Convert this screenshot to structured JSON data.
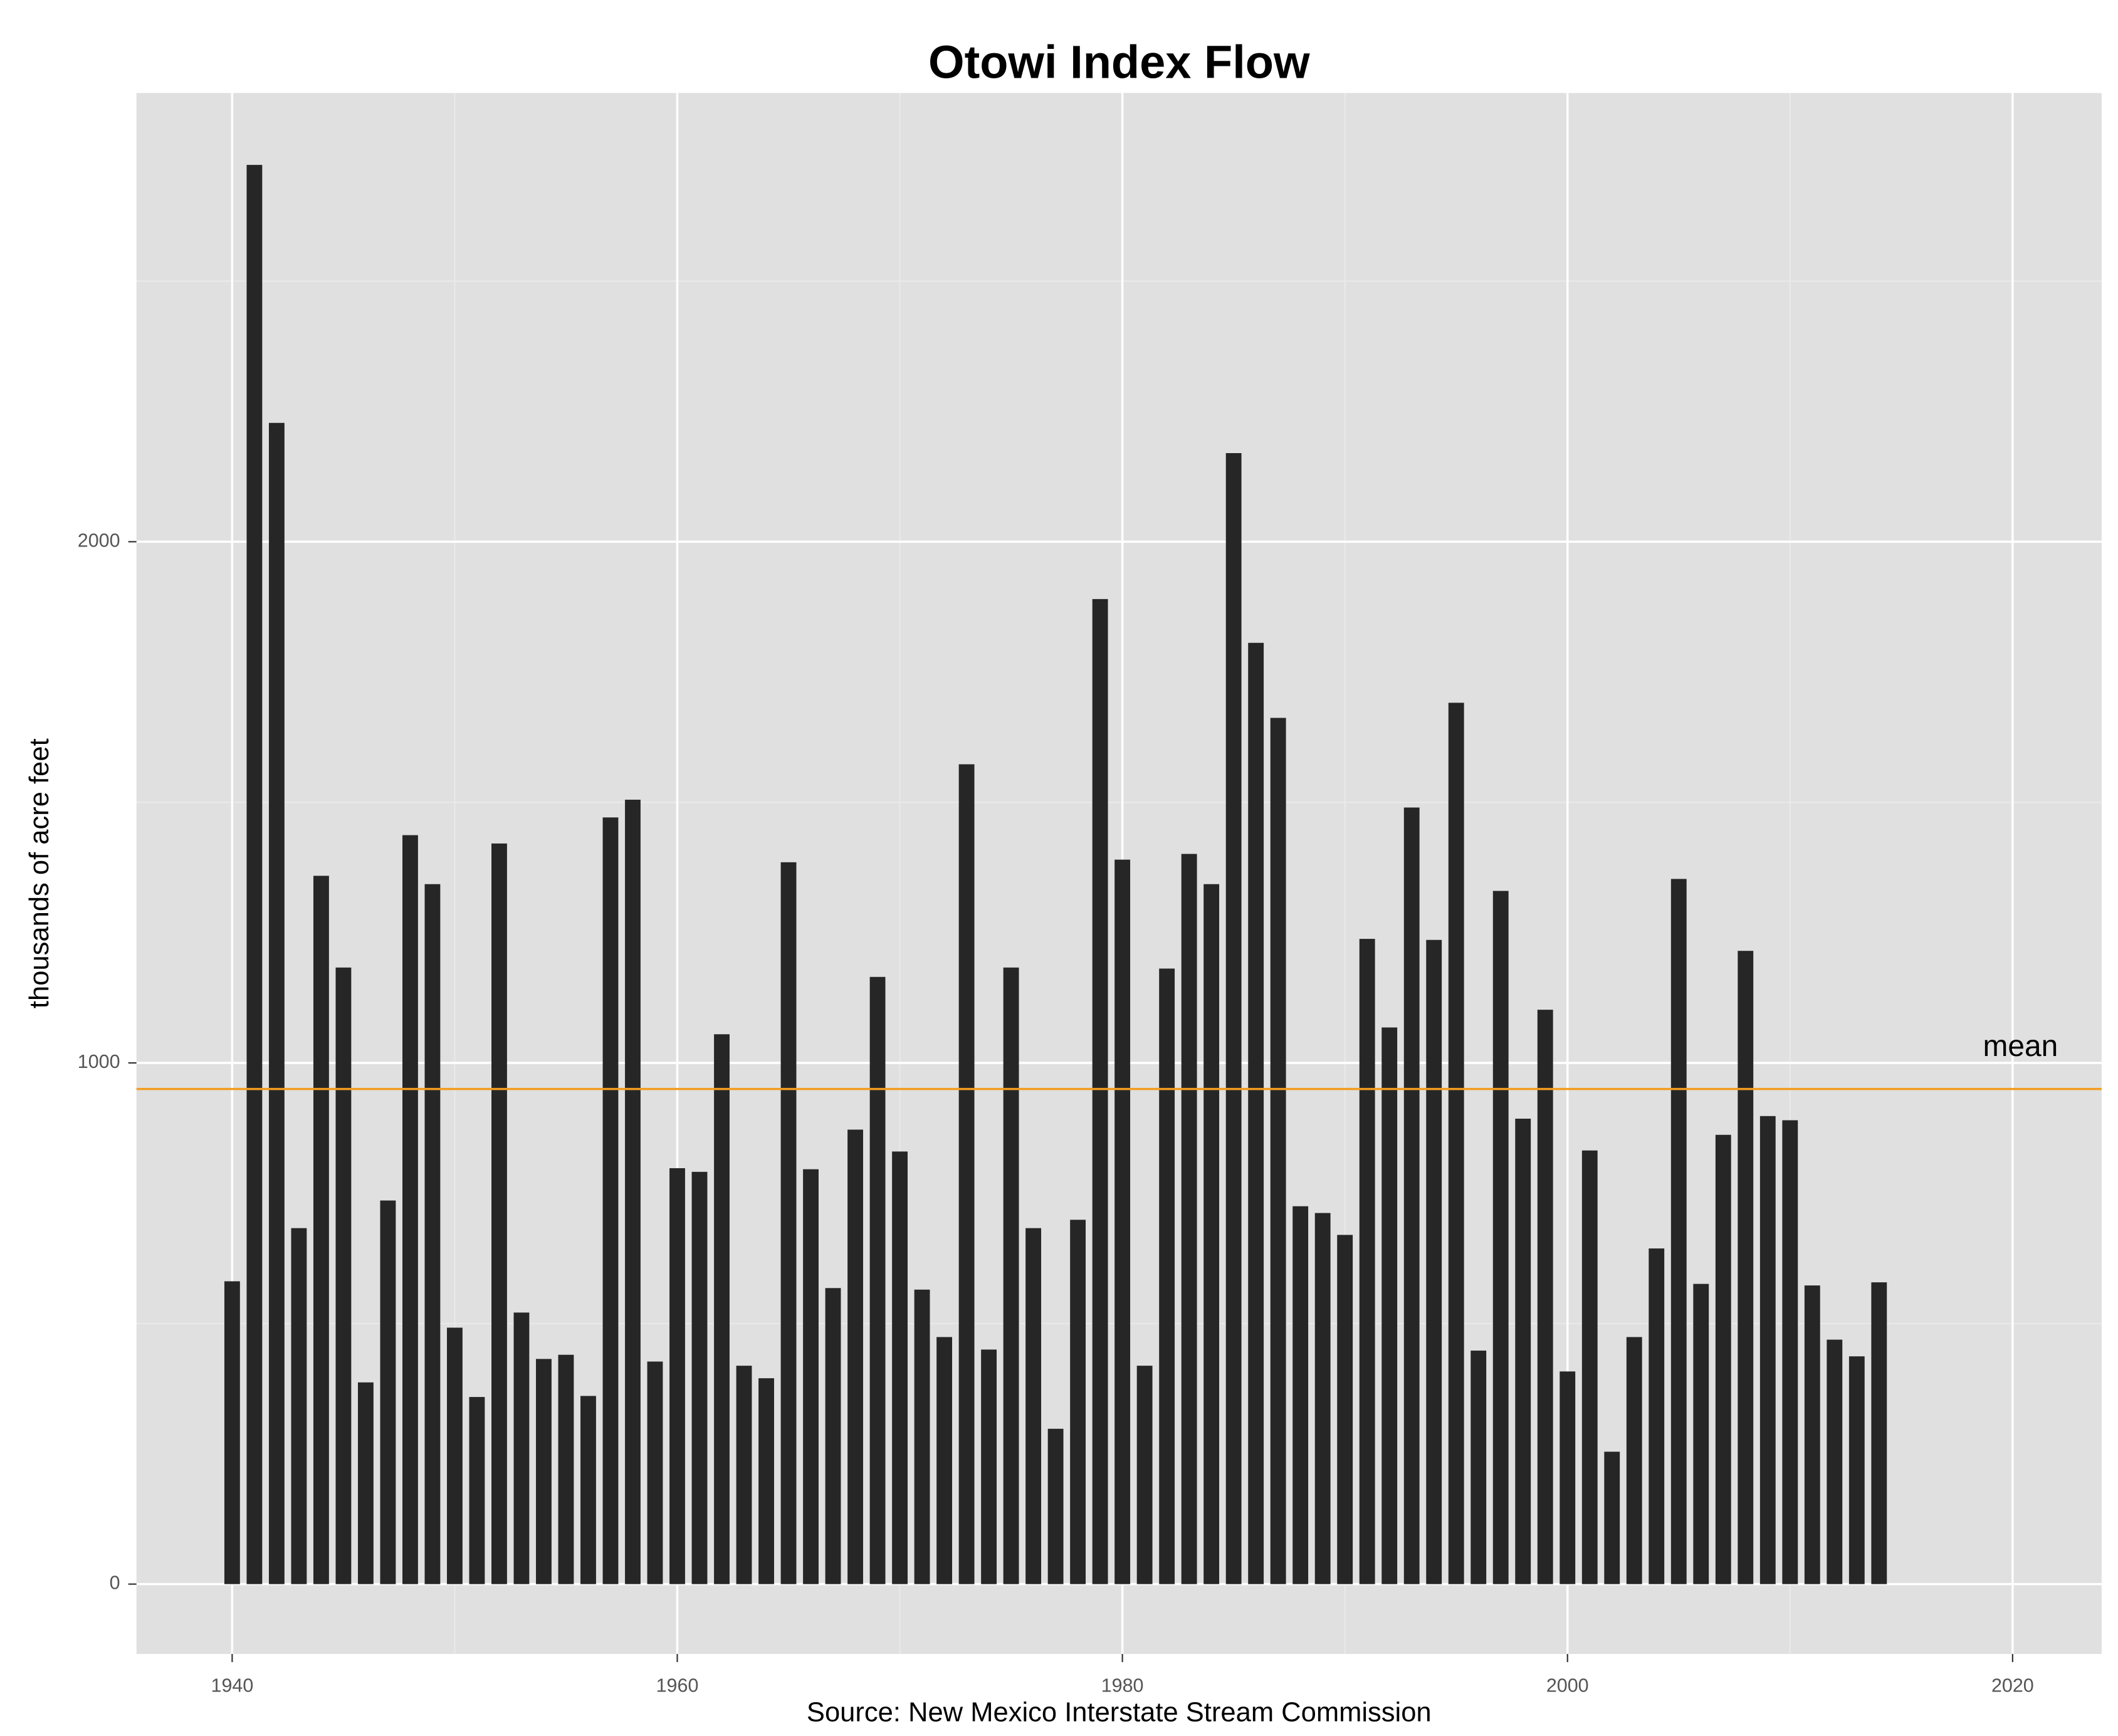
{
  "chart_data": {
    "type": "bar",
    "title": "Otowi Index Flow",
    "y_label": "thousands of acre feet",
    "caption": "Source: New Mexico Interstate Stream Commission",
    "x": [
      1940,
      1941,
      1942,
      1943,
      1944,
      1945,
      1946,
      1947,
      1948,
      1949,
      1950,
      1951,
      1952,
      1953,
      1954,
      1955,
      1956,
      1957,
      1958,
      1959,
      1960,
      1961,
      1962,
      1963,
      1964,
      1965,
      1966,
      1967,
      1968,
      1969,
      1970,
      1971,
      1972,
      1973,
      1974,
      1975,
      1976,
      1977,
      1978,
      1979,
      1980,
      1981,
      1982,
      1983,
      1984,
      1985,
      1986,
      1987,
      1988,
      1989,
      1990,
      1991,
      1992,
      1993,
      1994,
      1995,
      1996,
      1997,
      1998,
      1999,
      2000,
      2001,
      2002,
      2003,
      2004,
      2005,
      2006,
      2007,
      2008,
      2009,
      2010,
      2011,
      2012,
      2013,
      2014
    ],
    "values": [
      581,
      2723,
      2228,
      683,
      1359,
      1183,
      387,
      736,
      1437,
      1343,
      492,
      359,
      1421,
      521,
      432,
      440,
      361,
      1471,
      1505,
      427,
      798,
      791,
      1055,
      419,
      395,
      1385,
      796,
      568,
      872,
      1165,
      830,
      565,
      474,
      1573,
      450,
      1183,
      683,
      298,
      699,
      1890,
      1390,
      419,
      1181,
      1401,
      1343,
      2170,
      1806,
      1662,
      725,
      712,
      670,
      1238,
      1068,
      1490,
      1236,
      1691,
      448,
      1330,
      893,
      1102,
      408,
      832,
      254,
      474,
      644,
      1353,
      576,
      862,
      1215,
      898,
      890,
      573,
      469,
      437,
      579
    ],
    "color": "#262626",
    "mean": {
      "label": "mean",
      "value": 950,
      "color": "#f39c1f"
    },
    "xlim": [
      1935.7,
      2024
    ],
    "ylim": [
      -134,
      2861
    ],
    "xticks": [
      1940,
      1960,
      1980,
      2000,
      2020
    ],
    "yticks": [
      0,
      1000,
      2000
    ],
    "grid": true,
    "minor_grid": true
  }
}
